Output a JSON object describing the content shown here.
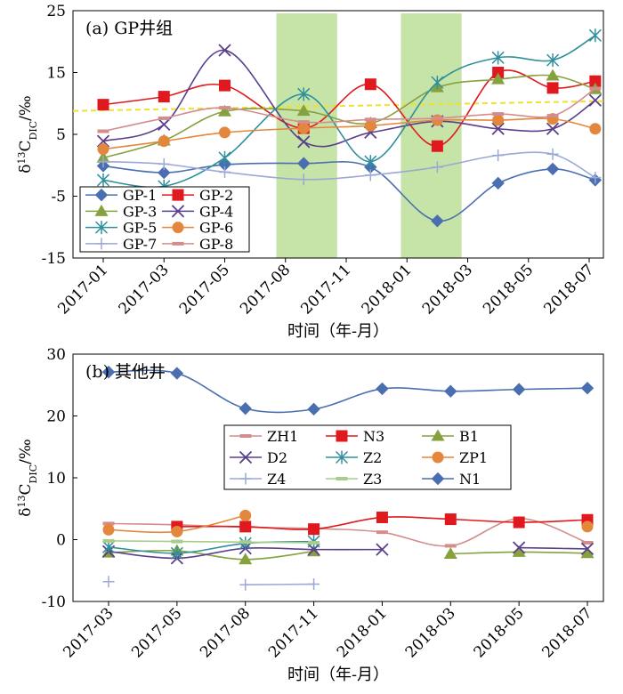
{
  "chart_data": [
    {
      "type": "line",
      "title": "(a) GP井组",
      "xlabel": "时间（年-月）",
      "ylabel": "δ13CDIC/‰",
      "ylim": [
        -15,
        25
      ],
      "yticks": [
        -15,
        -5,
        5,
        15,
        25
      ],
      "xtick_labels": [
        "2017-01",
        "2017-03",
        "2017-05",
        "2017-08",
        "2017-11",
        "2018-01",
        "2018-03",
        "2018-05",
        "2018-07"
      ],
      "xlim": [
        0,
        8
      ],
      "reference_line": {
        "y": 9.8,
        "color": "#f2e02a",
        "style": "dashed"
      },
      "shaded_ranges": [
        {
          "from": 2.85,
          "to": 3.85
        },
        {
          "from": 4.9,
          "to": 5.9
        }
      ],
      "shade_color": "#c6e3a8",
      "legend_position": "lower-left",
      "legend_columns": 2,
      "series": [
        {
          "name": "GP-1",
          "color": "#4a6fb0",
          "marker": "diamond",
          "x": [
            0,
            1,
            2,
            3.3,
            4.4,
            5.5,
            6.5,
            7.4,
            8.1
          ],
          "y": [
            -0.1,
            -1.2,
            0.1,
            0.3,
            -0.3,
            -9,
            -2.9,
            -0.6,
            -2.4
          ]
        },
        {
          "name": "GP-2",
          "color": "#e0191e",
          "marker": "square",
          "x": [
            0,
            1,
            2,
            3.3,
            4.4,
            5.5,
            6.5,
            7.4,
            8.1
          ],
          "y": [
            9.8,
            11.1,
            12.9,
            6,
            13.1,
            3.1,
            15,
            12.5,
            13.6
          ]
        },
        {
          "name": "GP-3",
          "color": "#86a23e",
          "marker": "triangle",
          "x": [
            0,
            1,
            2,
            3.3,
            4.4,
            5.5,
            6.5,
            7.4,
            8.1
          ],
          "y": [
            1.2,
            4,
            8.7,
            8.8,
            6.8,
            12.6,
            13.9,
            14.5,
            12.3
          ]
        },
        {
          "name": "GP-4",
          "color": "#5a3f8c",
          "marker": "x",
          "x": [
            0,
            1,
            2,
            3.3,
            4.4,
            5.5,
            6.5,
            7.4,
            8.1
          ],
          "y": [
            3.9,
            6.6,
            18.6,
            3.8,
            5.3,
            7.1,
            5.9,
            5.9,
            10.5
          ]
        },
        {
          "name": "GP-5",
          "color": "#2f8f9c",
          "marker": "star",
          "x": [
            0,
            1,
            2,
            3.3,
            4.4,
            5.5,
            6.5,
            7.4,
            8.1
          ],
          "y": [
            -2.4,
            -3.4,
            1.2,
            11.5,
            0.6,
            13.4,
            17.4,
            17,
            21
          ]
        },
        {
          "name": "GP-6",
          "color": "#e3873c",
          "marker": "circle",
          "x": [
            0,
            1,
            2,
            3.3,
            4.4,
            5.5,
            6.5,
            7.4,
            8.1
          ],
          "y": [
            2.6,
            3.9,
            5.3,
            6,
            6.4,
            7.3,
            7.3,
            7.5,
            5.9
          ]
        },
        {
          "name": "GP-7",
          "color": "#9aa9d6",
          "marker": "plus",
          "x": [
            0,
            1,
            2,
            3.3,
            4.4,
            5.5,
            6.5,
            7.4,
            8.1
          ],
          "y": [
            0.6,
            0.2,
            -1.1,
            -2.3,
            -1.6,
            -0.3,
            1.6,
            1.8,
            -2
          ]
        },
        {
          "name": "GP-8",
          "color": "#d48d8c",
          "marker": "dash",
          "x": [
            0,
            1,
            2,
            3.3,
            4.4,
            5.5,
            6.5,
            7.4,
            8.1
          ],
          "y": [
            5.5,
            7.6,
            9.3,
            7,
            7.4,
            7.6,
            8.3,
            8,
            12.4
          ]
        }
      ]
    },
    {
      "type": "line",
      "title": "(b) 其他井",
      "xlabel": "时间（年-月）",
      "ylabel": "δ13CDIC/‰",
      "ylim": [
        -10,
        30
      ],
      "yticks": [
        -10,
        0,
        10,
        20,
        30
      ],
      "xtick_labels": [
        "2017-03",
        "2017-05",
        "2017-08",
        "2017-11",
        "2018-01",
        "2018-03",
        "2018-05",
        "2018-07"
      ],
      "xlim": [
        0,
        7
      ],
      "legend_position": "center-right",
      "legend_columns": 3,
      "series": [
        {
          "name": "ZH1",
          "color": "#d48d8c",
          "marker": "dash",
          "x": [
            0,
            1,
            2,
            3,
            4,
            5,
            6,
            7
          ],
          "y": [
            2.6,
            2.4,
            2,
            1.8,
            1.2,
            -1,
            3.4,
            -0.5
          ]
        },
        {
          "name": "N3",
          "color": "#e0191e",
          "marker": "square",
          "x": [
            0,
            1,
            2,
            3,
            4,
            5,
            6,
            7
          ],
          "y": [
            null,
            2.1,
            2.1,
            1.7,
            3.6,
            3.3,
            2.8,
            3.2
          ]
        },
        {
          "name": "B1",
          "color": "#86a23e",
          "marker": "triangle",
          "x": [
            0,
            1,
            2,
            3,
            4,
            5,
            6,
            7
          ],
          "y": [
            -2.1,
            -1.8,
            -3.2,
            -1.9,
            null,
            -2.3,
            -2,
            -2.2
          ]
        },
        {
          "name": "D2",
          "color": "#5a3f8c",
          "marker": "x",
          "x": [
            0,
            1,
            2,
            3,
            4,
            5,
            6,
            7
          ],
          "y": [
            -1.9,
            -3,
            -1.4,
            -1.6,
            -1.6,
            null,
            -1.3,
            -1.5
          ]
        },
        {
          "name": "Z2",
          "color": "#2f8f9c",
          "marker": "star",
          "x": [
            0,
            1,
            2,
            3
          ],
          "y": [
            -1.2,
            -2.2,
            -0.6,
            -0.3
          ]
        },
        {
          "name": "ZP1",
          "color": "#e3873c",
          "marker": "circle",
          "x": [
            0,
            1,
            2,
            3,
            4,
            5,
            6,
            7
          ],
          "y": [
            1.6,
            1.3,
            3.9,
            null,
            null,
            null,
            null,
            2.1
          ]
        },
        {
          "name": "Z4",
          "color": "#9aa9d6",
          "marker": "plus",
          "x": [
            0,
            1,
            2,
            3
          ],
          "y": [
            -6.8,
            null,
            -7.3,
            -7.2
          ]
        },
        {
          "name": "Z3",
          "color": "#a9cc8a",
          "marker": "dash",
          "x": [
            0,
            1,
            2,
            3
          ],
          "y": [
            -0.2,
            -0.3,
            -0.4,
            -0.5
          ]
        },
        {
          "name": "N1",
          "color": "#4a6fb0",
          "marker": "diamond",
          "x": [
            0,
            1,
            2,
            3,
            4,
            5,
            6,
            7
          ],
          "y": [
            27.1,
            26.9,
            21.2,
            21.1,
            24.4,
            24,
            24.3,
            24.5
          ]
        }
      ]
    }
  ]
}
